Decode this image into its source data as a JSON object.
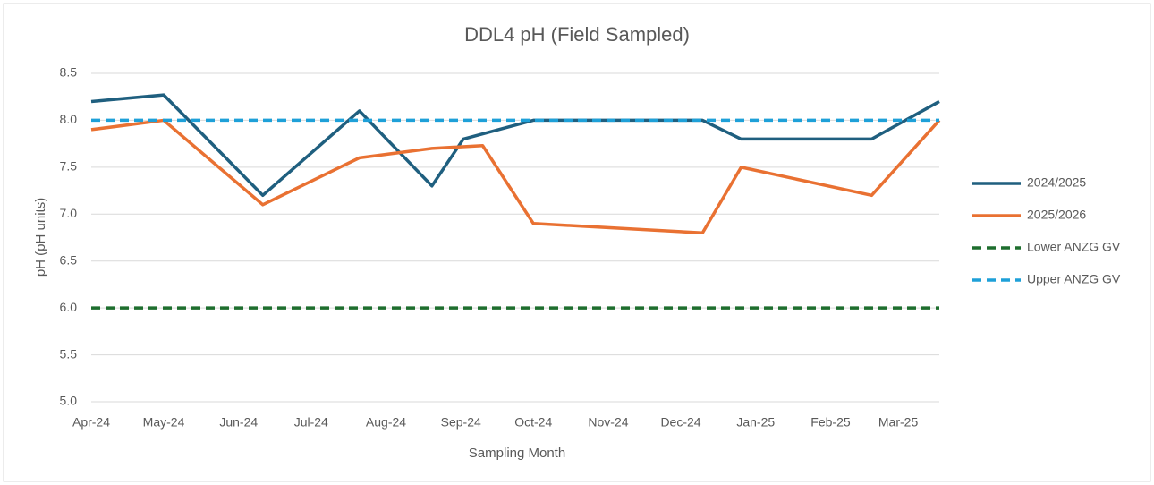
{
  "chart_data": {
    "type": "line",
    "title": "DDL4 pH (Field Sampled)",
    "x_label": "Sampling Month",
    "y_label": "pH (pH units)",
    "xlim": [
      0,
      351
    ],
    "xticks": [
      {
        "value": 0,
        "label": "Apr-24"
      },
      {
        "value": 30,
        "label": "May-24"
      },
      {
        "value": 61,
        "label": "Jun-24"
      },
      {
        "value": 91,
        "label": "Jul-24"
      },
      {
        "value": 122,
        "label": "Aug-24"
      },
      {
        "value": 153,
        "label": "Sep-24"
      },
      {
        "value": 183,
        "label": "Oct-24"
      },
      {
        "value": 214,
        "label": "Nov-24"
      },
      {
        "value": 244,
        "label": "Dec-24"
      },
      {
        "value": 275,
        "label": "Jan-25"
      },
      {
        "value": 306,
        "label": "Feb-25"
      },
      {
        "value": 334,
        "label": "Mar-25"
      }
    ],
    "ylim": [
      5,
      8.5
    ],
    "yticks": [
      {
        "value": 5,
        "label": "5.0"
      },
      5.5,
      {
        "value": 6,
        "label": "6.0"
      },
      6.5,
      {
        "value": 7,
        "label": "7.0"
      },
      7.5,
      {
        "value": 8,
        "label": "8.0"
      },
      8.5
    ],
    "grid": true,
    "legend": "right",
    "series": [
      {
        "name": "2024/2025",
        "color": "#1f5f7f",
        "dashed": false,
        "x": [
          0,
          30,
          71,
          111,
          141,
          154,
          183,
          253,
          269,
          323,
          351
        ],
        "values": [
          8.2,
          8.27,
          7.2,
          8.1,
          7.3,
          7.8,
          8.0,
          8.0,
          7.8,
          7.8,
          8.2
        ]
      },
      {
        "name": "2025/2026",
        "color": "#e97132",
        "dashed": false,
        "x": [
          0,
          30,
          71,
          111,
          141,
          162,
          183,
          253,
          269,
          323,
          351
        ],
        "values": [
          7.9,
          8.0,
          7.1,
          7.6,
          7.7,
          7.73,
          6.9,
          6.8,
          7.5,
          7.2,
          8.0
        ]
      },
      {
        "name": "Lower ANZG GV",
        "color": "#1e6e2e",
        "dashed": true,
        "x": [
          0,
          351
        ],
        "values": [
          6.0,
          6.0
        ]
      },
      {
        "name": "Upper ANZG GV",
        "color": "#1ea0d8",
        "dashed": true,
        "x": [
          0,
          351
        ],
        "values": [
          8.0,
          8.0
        ]
      }
    ]
  }
}
